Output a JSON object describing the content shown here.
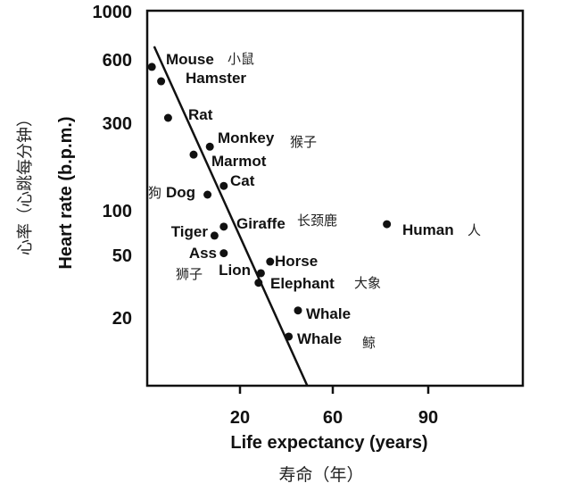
{
  "chart_data": {
    "type": "scatter",
    "title": "",
    "xlabel": "Life expectancy (years)",
    "xlabel_cn": "寿命（年）",
    "ylabel": "Heart rate (b.p.m.)",
    "ylabel_cn": "心率（心跳每分钟）",
    "y_scale": "log",
    "x_ticks": [
      20,
      60,
      90
    ],
    "y_ticks": [
      1000,
      600,
      300,
      100,
      50,
      20
    ],
    "grid": false,
    "legend": "none",
    "points": [
      {
        "name": "Mouse",
        "name_cn": "小鼠",
        "x": -18,
        "y": 550
      },
      {
        "name": "Hamster",
        "name_cn": "",
        "x": -14,
        "y": 470
      },
      {
        "name": "Rat",
        "name_cn": "",
        "x": -11,
        "y": 315
      },
      {
        "name": "Monkey",
        "name_cn": "猴子",
        "x": 7,
        "y": 221
      },
      {
        "name": "Marmot",
        "name_cn": "",
        "x": 0,
        "y": 200
      },
      {
        "name": "Cat",
        "name_cn": "",
        "x": 13,
        "y": 135
      },
      {
        "name": "Dog",
        "name_cn": "狗",
        "x": 6,
        "y": 121
      },
      {
        "name": "Giraffe",
        "name_cn": "长颈鹿",
        "x": 13,
        "y": 77
      },
      {
        "name": "Tiger",
        "name_cn": "",
        "x": 9,
        "y": 67
      },
      {
        "name": "Ass",
        "name_cn": "",
        "x": 13,
        "y": 51
      },
      {
        "name": "Horse",
        "name_cn": "",
        "x": 33,
        "y": 45
      },
      {
        "name": "Lion",
        "name_cn": "狮子",
        "x": 29,
        "y": 38
      },
      {
        "name": "Elephant",
        "name_cn": "大象",
        "x": 28,
        "y": 33
      },
      {
        "name": "Whale",
        "name_cn": "",
        "x": 45,
        "y": 22
      },
      {
        "name": "Whale",
        "name_cn": "鲸",
        "x": 41,
        "y": 15
      },
      {
        "name": "Human",
        "name_cn": "人",
        "x": 77,
        "y": 80
      }
    ],
    "trend_line": [
      {
        "x": -17,
        "y": 685
      },
      {
        "x": 49,
        "y": 7.3
      }
    ]
  }
}
